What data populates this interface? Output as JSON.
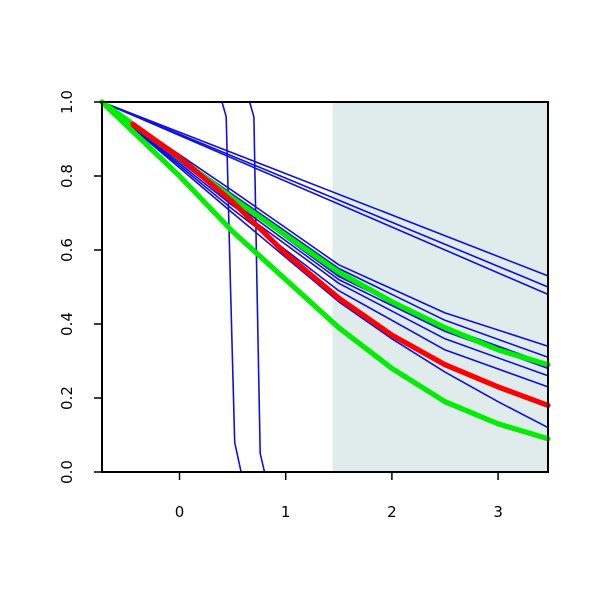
{
  "chart_data": {
    "type": "line",
    "title": "",
    "xlabel": "",
    "ylabel": "",
    "xlim": [
      -0.73,
      3.47
    ],
    "ylim": [
      0.0,
      1.0
    ],
    "x_ticks": [
      0,
      1,
      2,
      3
    ],
    "y_ticks": [
      0.0,
      0.2,
      0.4,
      0.6,
      0.8,
      1.0
    ],
    "x_tick_labels": [
      "0",
      "1",
      "2",
      "3"
    ],
    "y_tick_labels": [
      "0.0",
      "0.2",
      "0.4",
      "0.6",
      "0.8",
      "1.0"
    ],
    "grid": false,
    "legend": "none",
    "shaded_region": {
      "x_from": 1.44,
      "x_to": 3.47,
      "color": "#e0ecec"
    },
    "colors": {
      "blue": "#1010e0",
      "red": "#ff0000",
      "green": "#00ee00",
      "axis": "#000000"
    },
    "series": [
      {
        "color": "#1010e0",
        "width": "thin",
        "points": [
          [
            -0.73,
            1.0
          ],
          [
            0.4,
            1.0
          ],
          [
            0.44,
            0.96
          ],
          [
            0.48,
            0.5
          ],
          [
            0.52,
            0.08
          ],
          [
            0.58,
            0.0
          ],
          [
            3.47,
            0.0
          ]
        ]
      },
      {
        "color": "#1010e0",
        "width": "thin",
        "points": [
          [
            -0.73,
            1.0
          ],
          [
            0.66,
            1.0
          ],
          [
            0.7,
            0.96
          ],
          [
            0.73,
            0.5
          ],
          [
            0.76,
            0.05
          ],
          [
            0.8,
            0.0
          ],
          [
            3.47,
            0.0
          ]
        ]
      },
      {
        "color": "#1010e0",
        "width": "thin",
        "points": [
          [
            -0.73,
            1.0
          ],
          [
            3.47,
            0.53
          ]
        ]
      },
      {
        "color": "#1010e0",
        "width": "thin",
        "points": [
          [
            -0.73,
            1.0
          ],
          [
            3.47,
            0.5
          ]
        ]
      },
      {
        "color": "#1010e0",
        "width": "thin",
        "points": [
          [
            -0.73,
            1.0
          ],
          [
            3.47,
            0.48
          ]
        ]
      },
      {
        "color": "#1010e0",
        "width": "thin",
        "points": [
          [
            -0.73,
            1.0
          ],
          [
            0.5,
            0.76
          ],
          [
            1.5,
            0.56
          ],
          [
            2.5,
            0.43
          ],
          [
            3.47,
            0.34
          ]
        ]
      },
      {
        "color": "#1010e0",
        "width": "thin",
        "points": [
          [
            -0.73,
            1.0
          ],
          [
            0.5,
            0.75
          ],
          [
            1.5,
            0.55
          ],
          [
            2.5,
            0.41
          ],
          [
            3.47,
            0.31
          ]
        ]
      },
      {
        "color": "#1010e0",
        "width": "thin",
        "points": [
          [
            -0.73,
            1.0
          ],
          [
            0.5,
            0.73
          ],
          [
            1.5,
            0.52
          ],
          [
            2.5,
            0.38
          ],
          [
            3.47,
            0.28
          ]
        ]
      },
      {
        "color": "#1010e0",
        "width": "thin",
        "points": [
          [
            -0.73,
            1.0
          ],
          [
            0.5,
            0.72
          ],
          [
            1.5,
            0.51
          ],
          [
            2.5,
            0.36
          ],
          [
            3.47,
            0.26
          ]
        ]
      },
      {
        "color": "#1010e0",
        "width": "thin",
        "points": [
          [
            -0.73,
            1.0
          ],
          [
            0.5,
            0.71
          ],
          [
            1.5,
            0.49
          ],
          [
            2.5,
            0.33
          ],
          [
            3.47,
            0.23
          ]
        ]
      },
      {
        "color": "#1010e0",
        "width": "thin",
        "points": [
          [
            -0.73,
            1.0
          ],
          [
            0.5,
            0.7
          ],
          [
            1.0,
            0.58
          ],
          [
            1.5,
            0.46
          ],
          [
            2.0,
            0.36
          ],
          [
            2.5,
            0.27
          ],
          [
            3.0,
            0.19
          ],
          [
            3.47,
            0.12
          ]
        ]
      },
      {
        "color": "#1010e0",
        "width": "medium",
        "points": [
          [
            -0.73,
            1.0
          ],
          [
            0.5,
            0.74
          ],
          [
            1.5,
            0.53
          ],
          [
            2.5,
            0.39
          ],
          [
            3.47,
            0.29
          ]
        ]
      },
      {
        "color": "#00ee00",
        "width": "thick",
        "points": [
          [
            -0.73,
            1.0
          ],
          [
            -0.1,
            0.87
          ],
          [
            0.5,
            0.74
          ],
          [
            1.0,
            0.64
          ],
          [
            1.5,
            0.54
          ],
          [
            2.0,
            0.46
          ],
          [
            2.5,
            0.39
          ],
          [
            3.0,
            0.33
          ],
          [
            3.47,
            0.29
          ]
        ]
      },
      {
        "color": "#ff0000",
        "width": "thick",
        "points": [
          [
            -0.44,
            0.94
          ],
          [
            0.0,
            0.85
          ],
          [
            0.5,
            0.73
          ],
          [
            1.0,
            0.59
          ],
          [
            1.5,
            0.47
          ],
          [
            2.0,
            0.37
          ],
          [
            2.5,
            0.29
          ],
          [
            3.0,
            0.23
          ],
          [
            3.47,
            0.18
          ]
        ]
      },
      {
        "color": "#00ee00",
        "width": "thick",
        "points": [
          [
            -0.73,
            1.0
          ],
          [
            0.0,
            0.8
          ],
          [
            0.5,
            0.65
          ],
          [
            1.0,
            0.52
          ],
          [
            1.5,
            0.39
          ],
          [
            2.0,
            0.28
          ],
          [
            2.5,
            0.19
          ],
          [
            3.0,
            0.13
          ],
          [
            3.47,
            0.09
          ]
        ]
      }
    ]
  }
}
